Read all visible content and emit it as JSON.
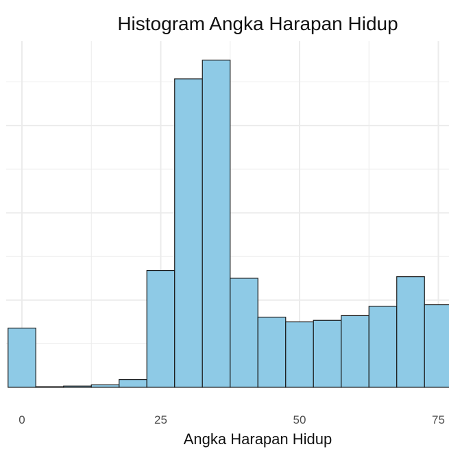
{
  "chart_data": {
    "type": "bar",
    "title": "Histogram Angka Harapan Hidup",
    "xlabel": "Angka Harapan Hidup",
    "ylabel": "",
    "bin_width": 5,
    "bins": [
      {
        "x0": -2.5,
        "x1": 2.5,
        "count": 1.9
      },
      {
        "x0": 2.5,
        "x1": 7.5,
        "count": 0.02
      },
      {
        "x0": 7.5,
        "x1": 12.5,
        "count": 0.04
      },
      {
        "x0": 12.5,
        "x1": 17.5,
        "count": 0.08
      },
      {
        "x0": 17.5,
        "x1": 22.5,
        "count": 0.25
      },
      {
        "x0": 22.5,
        "x1": 27.5,
        "count": 3.75
      },
      {
        "x0": 27.5,
        "x1": 32.5,
        "count": 9.9
      },
      {
        "x0": 32.5,
        "x1": 37.5,
        "count": 10.5
      },
      {
        "x0": 37.5,
        "x1": 42.5,
        "count": 3.5
      },
      {
        "x0": 42.5,
        "x1": 47.5,
        "count": 2.25
      },
      {
        "x0": 47.5,
        "x1": 52.5,
        "count": 2.1
      },
      {
        "x0": 52.5,
        "x1": 57.5,
        "count": 2.15
      },
      {
        "x0": 57.5,
        "x1": 62.5,
        "count": 2.3
      },
      {
        "x0": 62.5,
        "x1": 67.5,
        "count": 2.6
      },
      {
        "x0": 67.5,
        "x1": 72.5,
        "count": 3.55
      },
      {
        "x0": 72.5,
        "x1": 77.5,
        "count": 2.65
      }
    ],
    "x_ticks": [
      "0",
      "25",
      "50",
      "75"
    ],
    "x_tick_values": [
      0,
      25,
      50,
      75
    ],
    "xlim": [
      -3,
      77.5
    ],
    "ylim": [
      0,
      11
    ],
    "y_gridlines": [
      1.4,
      2.8,
      4.2,
      5.6,
      7.0,
      8.4,
      9.8
    ],
    "x_minor_gridlines": [
      12.5,
      37.5,
      62.5
    ],
    "grid": true,
    "legend": "none",
    "colors": {
      "bar_fill": "#8ecae6",
      "bar_stroke": "#1a1a1a",
      "grid": "#ebebeb",
      "background": "#ffffff"
    }
  }
}
